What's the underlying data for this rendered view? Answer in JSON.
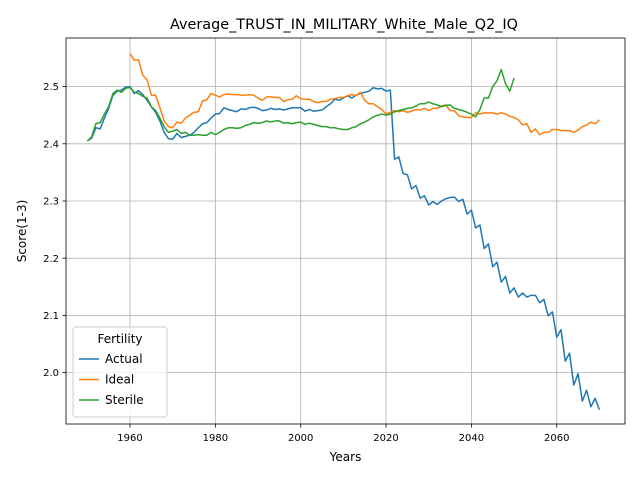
{
  "chart_data": {
    "type": "line",
    "title": "Average_TRUST_IN_MILITARY_White_Male_Q2_IQ",
    "xlabel": "Years",
    "ylabel": "Score(1-3)",
    "xlim": [
      1945,
      2076
    ],
    "ylim": [
      1.91,
      2.585
    ],
    "xticks": [
      1960,
      1980,
      2000,
      2020,
      2040,
      2060
    ],
    "yticks": [
      2.0,
      2.1,
      2.2,
      2.3,
      2.4,
      2.5
    ],
    "ytick_labels": [
      "2.0",
      "2.1",
      "2.2",
      "2.3",
      "2.4",
      "2.5"
    ],
    "grid": true,
    "legend": {
      "title": "Fertility",
      "placement": "lower-left"
    },
    "series": [
      {
        "name": "Actual",
        "color": "#1f77b4",
        "x": [
          1950,
          1951,
          1952,
          1953,
          1954,
          1955,
          1956,
          1957,
          1958,
          1959,
          1960,
          1961,
          1962,
          1963,
          1964,
          1965,
          1966,
          1967,
          1968,
          1969,
          1970,
          1971,
          1972,
          1973,
          1974,
          1975,
          1976,
          1977,
          1978,
          1979,
          1980,
          1981,
          1982,
          1983,
          1984,
          1985,
          1986,
          1987,
          1988,
          1989,
          1990,
          1991,
          1992,
          1993,
          1994,
          1995,
          1996,
          1997,
          1998,
          1999,
          2000,
          2001,
          2002,
          2003,
          2004,
          2005,
          2006,
          2007,
          2008,
          2009,
          2010,
          2011,
          2012,
          2013,
          2014,
          2015,
          2016,
          2017,
          2018,
          2019,
          2020,
          2021,
          2022,
          2023,
          2024,
          2025,
          2026,
          2027,
          2028,
          2029,
          2030,
          2031,
          2032,
          2033,
          2034,
          2035,
          2036,
          2037,
          2038,
          2039,
          2040,
          2041,
          2042,
          2043,
          2044,
          2045,
          2046,
          2047,
          2048,
          2049,
          2050,
          2051,
          2052,
          2053,
          2054,
          2055,
          2056,
          2057,
          2058,
          2059,
          2060,
          2061,
          2062,
          2063,
          2064,
          2065,
          2066,
          2067,
          2068,
          2069,
          2070
        ],
        "values": [
          2.405,
          2.41,
          2.428,
          2.426,
          2.445,
          2.462,
          2.485,
          2.492,
          2.494,
          2.499,
          2.5,
          2.488,
          2.493,
          2.486,
          2.476,
          2.465,
          2.455,
          2.44,
          2.42,
          2.409,
          2.408,
          2.418,
          2.411,
          2.413,
          2.415,
          2.42,
          2.428,
          2.435,
          2.437,
          2.445,
          2.452,
          2.453,
          2.463,
          2.46,
          2.458,
          2.456,
          2.461,
          2.46,
          2.463,
          2.464,
          2.462,
          2.458,
          2.459,
          2.462,
          2.46,
          2.461,
          2.459,
          2.461,
          2.463,
          2.463,
          2.463,
          2.457,
          2.46,
          2.457,
          2.458,
          2.459,
          2.465,
          2.47,
          2.478,
          2.476,
          2.48,
          2.484,
          2.48,
          2.485,
          2.488,
          2.49,
          2.492,
          2.498,
          2.496,
          2.497,
          2.492,
          2.494,
          2.373,
          2.377,
          2.348,
          2.346,
          2.321,
          2.327,
          2.305,
          2.309,
          2.293,
          2.299,
          2.294,
          2.3,
          2.304,
          2.306,
          2.307,
          2.299,
          2.303,
          2.277,
          2.284,
          2.253,
          2.258,
          2.217,
          2.225,
          2.185,
          2.193,
          2.158,
          2.168,
          2.139,
          2.148,
          2.132,
          2.139,
          2.132,
          2.135,
          2.135,
          2.122,
          2.128,
          2.099,
          2.106,
          2.062,
          2.075,
          2.02,
          2.034,
          1.978,
          1.998,
          1.95,
          1.969,
          1.94,
          1.955,
          1.935
        ]
      },
      {
        "name": "Ideal",
        "color": "#ff7f0e",
        "x": [
          1960,
          1961,
          1962,
          1963,
          1964,
          1965,
          1966,
          1967,
          1968,
          1969,
          1970,
          1971,
          1972,
          1973,
          1974,
          1975,
          1976,
          1977,
          1978,
          1979,
          1980,
          1981,
          1982,
          1983,
          1984,
          1985,
          1986,
          1987,
          1988,
          1989,
          1990,
          1991,
          1992,
          1993,
          1994,
          1995,
          1996,
          1997,
          1998,
          1999,
          2000,
          2001,
          2002,
          2003,
          2004,
          2005,
          2006,
          2007,
          2008,
          2009,
          2010,
          2011,
          2012,
          2013,
          2014,
          2015,
          2016,
          2017,
          2018,
          2019,
          2020,
          2021,
          2022,
          2023,
          2024,
          2025,
          2026,
          2027,
          2028,
          2029,
          2030,
          2031,
          2032,
          2033,
          2034,
          2035,
          2036,
          2037,
          2038,
          2039,
          2040,
          2041,
          2042,
          2043,
          2044,
          2045,
          2046,
          2047,
          2048,
          2049,
          2050,
          2051,
          2052,
          2053,
          2054,
          2055,
          2056,
          2057,
          2058,
          2059,
          2060,
          2061,
          2062,
          2063,
          2064,
          2065,
          2066,
          2067,
          2068,
          2069,
          2070
        ],
        "values": [
          2.558,
          2.546,
          2.547,
          2.52,
          2.512,
          2.485,
          2.485,
          2.463,
          2.44,
          2.43,
          2.428,
          2.438,
          2.436,
          2.445,
          2.45,
          2.455,
          2.456,
          2.475,
          2.477,
          2.488,
          2.485,
          2.482,
          2.486,
          2.487,
          2.486,
          2.486,
          2.485,
          2.485,
          2.486,
          2.485,
          2.48,
          2.476,
          2.482,
          2.482,
          2.481,
          2.481,
          2.474,
          2.477,
          2.478,
          2.484,
          2.479,
          2.478,
          2.478,
          2.474,
          2.472,
          2.474,
          2.474,
          2.478,
          2.479,
          2.481,
          2.481,
          2.484,
          2.486,
          2.484,
          2.49,
          2.476,
          2.47,
          2.47,
          2.465,
          2.46,
          2.452,
          2.455,
          2.458,
          2.456,
          2.458,
          2.455,
          2.457,
          2.46,
          2.459,
          2.462,
          2.458,
          2.462,
          2.462,
          2.466,
          2.468,
          2.458,
          2.458,
          2.449,
          2.447,
          2.446,
          2.446,
          2.454,
          2.452,
          2.454,
          2.454,
          2.454,
          2.452,
          2.454,
          2.452,
          2.448,
          2.446,
          2.442,
          2.433,
          2.435,
          2.42,
          2.426,
          2.416,
          2.42,
          2.42,
          2.425,
          2.425,
          2.423,
          2.423,
          2.423,
          2.42,
          2.424,
          2.43,
          2.433,
          2.438,
          2.435,
          2.442
        ]
      },
      {
        "name": "Sterile",
        "color": "#2ca02c",
        "x": [
          1950,
          1951,
          1952,
          1953,
          1954,
          1955,
          1956,
          1957,
          1958,
          1959,
          1960,
          1961,
          1962,
          1963,
          1964,
          1965,
          1966,
          1967,
          1968,
          1969,
          1970,
          1971,
          1972,
          1973,
          1974,
          1975,
          1976,
          1977,
          1978,
          1979,
          1980,
          1981,
          1982,
          1983,
          1984,
          1985,
          1986,
          1987,
          1988,
          1989,
          1990,
          1991,
          1992,
          1993,
          1994,
          1995,
          1996,
          1997,
          1998,
          1999,
          2000,
          2001,
          2002,
          2003,
          2004,
          2005,
          2006,
          2007,
          2008,
          2009,
          2010,
          2011,
          2012,
          2013,
          2014,
          2015,
          2016,
          2017,
          2018,
          2019,
          2020,
          2021,
          2022,
          2023,
          2024,
          2025,
          2026,
          2027,
          2028,
          2029,
          2030,
          2031,
          2032,
          2033,
          2034,
          2035,
          2036,
          2037,
          2038,
          2039,
          2040,
          2041,
          2042,
          2043,
          2044,
          2045,
          2046,
          2047,
          2048,
          2049,
          2050
        ],
        "values": [
          2.405,
          2.412,
          2.435,
          2.437,
          2.452,
          2.465,
          2.488,
          2.494,
          2.49,
          2.497,
          2.499,
          2.49,
          2.488,
          2.483,
          2.48,
          2.465,
          2.458,
          2.445,
          2.43,
          2.42,
          2.422,
          2.425,
          2.418,
          2.42,
          2.415,
          2.415,
          2.416,
          2.415,
          2.415,
          2.42,
          2.416,
          2.42,
          2.425,
          2.428,
          2.428,
          2.427,
          2.428,
          2.432,
          2.434,
          2.437,
          2.436,
          2.437,
          2.44,
          2.438,
          2.44,
          2.44,
          2.436,
          2.437,
          2.435,
          2.437,
          2.438,
          2.434,
          2.436,
          2.434,
          2.432,
          2.43,
          2.43,
          2.428,
          2.428,
          2.426,
          2.425,
          2.425,
          2.428,
          2.43,
          2.435,
          2.438,
          2.442,
          2.447,
          2.45,
          2.452,
          2.45,
          2.452,
          2.456,
          2.458,
          2.46,
          2.462,
          2.463,
          2.466,
          2.47,
          2.47,
          2.473,
          2.47,
          2.468,
          2.465,
          2.467,
          2.468,
          2.462,
          2.46,
          2.458,
          2.455,
          2.452,
          2.447,
          2.46,
          2.48,
          2.48,
          2.5,
          2.51,
          2.53,
          2.505,
          2.492,
          2.515
        ]
      }
    ]
  }
}
